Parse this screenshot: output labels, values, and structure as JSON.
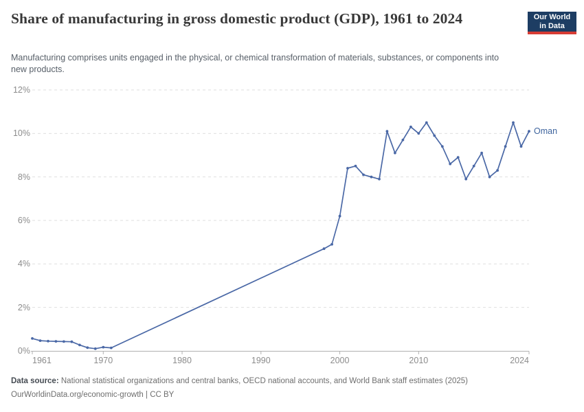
{
  "header": {
    "title": "Share of manufacturing in gross domestic product (GDP), 1961 to 2024",
    "subtitle": "Manufacturing comprises units engaged in the physical, or chemical transformation of materials, substances, or components into new products.",
    "logo": {
      "line1": "Our World",
      "line2": "in Data",
      "bg_color": "#1d3d63",
      "bar_color": "#d73c34"
    }
  },
  "chart_data": {
    "type": "line",
    "title": "Share of manufacturing in gross domestic product (GDP), 1961 to 2024",
    "xlabel": "",
    "ylabel": "",
    "xlim": [
      1961,
      2024
    ],
    "ylim": [
      0,
      12
    ],
    "grid": "horizontal-dashed",
    "legend_position": "end-of-line-label",
    "xticks": [
      1961,
      1970,
      1980,
      1990,
      2000,
      2010,
      2024
    ],
    "xtick_labels": [
      "1961",
      "1970",
      "1980",
      "1990",
      "2000",
      "2010",
      "2024"
    ],
    "yticks": [
      0,
      2,
      4,
      6,
      8,
      10,
      12
    ],
    "ytick_labels": [
      "0%",
      "2%",
      "4%",
      "6%",
      "8%",
      "10%",
      "12%"
    ],
    "series": [
      {
        "name": "Oman",
        "color": "#4a68a6",
        "label_color": "#3d639d",
        "points": [
          [
            1961,
            0.57
          ],
          [
            1962,
            0.47
          ],
          [
            1963,
            0.45
          ],
          [
            1964,
            0.44
          ],
          [
            1965,
            0.43
          ],
          [
            1966,
            0.42
          ],
          [
            1967,
            0.27
          ],
          [
            1968,
            0.15
          ],
          [
            1969,
            0.1
          ],
          [
            1970,
            0.17
          ],
          [
            1971,
            0.14
          ],
          [
            1998,
            4.7
          ],
          [
            1999,
            4.9
          ],
          [
            2000,
            6.2
          ],
          [
            2001,
            8.4
          ],
          [
            2002,
            8.5
          ],
          [
            2003,
            8.1
          ],
          [
            2004,
            8.0
          ],
          [
            2005,
            7.9
          ],
          [
            2006,
            10.1
          ],
          [
            2007,
            9.1
          ],
          [
            2008,
            9.7
          ],
          [
            2009,
            10.3
          ],
          [
            2010,
            10.0
          ],
          [
            2011,
            10.5
          ],
          [
            2012,
            9.9
          ],
          [
            2013,
            9.4
          ],
          [
            2014,
            8.6
          ],
          [
            2015,
            8.9
          ],
          [
            2016,
            7.9
          ],
          [
            2017,
            8.5
          ],
          [
            2018,
            9.1
          ],
          [
            2019,
            8.0
          ],
          [
            2020,
            8.3
          ],
          [
            2021,
            9.4
          ],
          [
            2022,
            10.5
          ],
          [
            2023,
            9.4
          ],
          [
            2024,
            10.1
          ]
        ]
      }
    ]
  },
  "footer": {
    "source_label": "Data source:",
    "source_text": "National statistical organizations and central banks, OECD national accounts, and World Bank staff estimates (2025)",
    "citation": "OurWorldinData.org/economic-growth | CC BY"
  },
  "colors": {
    "line": "#4a68a6",
    "axis": "#b0b0b0",
    "gridline": "#dfdfdf",
    "tick_text": "#8c8c8c"
  }
}
